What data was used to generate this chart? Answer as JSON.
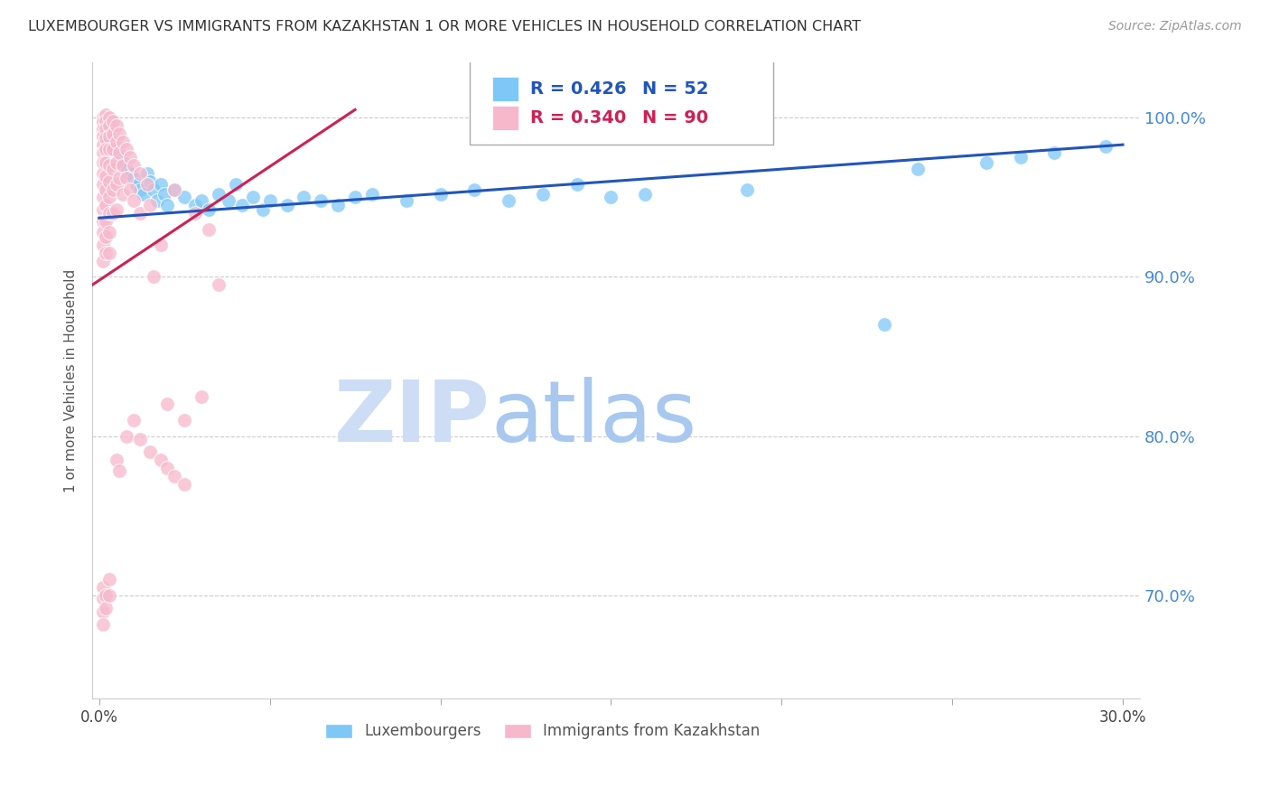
{
  "title": "LUXEMBOURGER VS IMMIGRANTS FROM KAZAKHSTAN 1 OR MORE VEHICLES IN HOUSEHOLD CORRELATION CHART",
  "source": "Source: ZipAtlas.com",
  "ylabel": "1 or more Vehicles in Household",
  "ytick_labels": [
    "70.0%",
    "80.0%",
    "90.0%",
    "100.0%"
  ],
  "ytick_values": [
    0.7,
    0.8,
    0.9,
    1.0
  ],
  "legend_blue_r": "R = 0.426",
  "legend_blue_n": "N = 52",
  "legend_pink_r": "R = 0.340",
  "legend_pink_n": "N = 90",
  "legend_blue_label": "Luxembourgers",
  "legend_pink_label": "Immigrants from Kazakhstan",
  "blue_color": "#7ec8f7",
  "pink_color": "#f7b8cc",
  "trendline_blue_color": "#2255bb",
  "trendline_pink_color": "#cc2255",
  "watermark_zip_color": "#ccddf5",
  "watermark_atlas_color": "#a8c8f0",
  "xlim_min": -0.002,
  "xlim_max": 0.305,
  "ylim_min": 0.635,
  "ylim_max": 1.035,
  "blue_trendline": [
    [
      0.0,
      0.937
    ],
    [
      0.3,
      0.983
    ]
  ],
  "pink_trendline": [
    [
      -0.002,
      0.895
    ],
    [
      0.075,
      1.005
    ]
  ],
  "blue_dots": [
    [
      0.002,
      0.99
    ],
    [
      0.003,
      0.985
    ],
    [
      0.004,
      0.982
    ],
    [
      0.005,
      0.978
    ],
    [
      0.006,
      0.975
    ],
    [
      0.007,
      0.972
    ],
    [
      0.008,
      0.968
    ],
    [
      0.009,
      0.965
    ],
    [
      0.01,
      0.962
    ],
    [
      0.011,
      0.958
    ],
    [
      0.012,
      0.955
    ],
    [
      0.013,
      0.952
    ],
    [
      0.014,
      0.965
    ],
    [
      0.015,
      0.96
    ],
    [
      0.016,
      0.955
    ],
    [
      0.017,
      0.948
    ],
    [
      0.018,
      0.958
    ],
    [
      0.019,
      0.952
    ],
    [
      0.02,
      0.945
    ],
    [
      0.022,
      0.955
    ],
    [
      0.025,
      0.95
    ],
    [
      0.028,
      0.945
    ],
    [
      0.03,
      0.948
    ],
    [
      0.032,
      0.942
    ],
    [
      0.035,
      0.952
    ],
    [
      0.038,
      0.948
    ],
    [
      0.04,
      0.958
    ],
    [
      0.042,
      0.945
    ],
    [
      0.045,
      0.95
    ],
    [
      0.048,
      0.942
    ],
    [
      0.05,
      0.948
    ],
    [
      0.055,
      0.945
    ],
    [
      0.06,
      0.95
    ],
    [
      0.065,
      0.948
    ],
    [
      0.07,
      0.945
    ],
    [
      0.075,
      0.95
    ],
    [
      0.08,
      0.952
    ],
    [
      0.09,
      0.948
    ],
    [
      0.1,
      0.952
    ],
    [
      0.11,
      0.955
    ],
    [
      0.12,
      0.948
    ],
    [
      0.13,
      0.952
    ],
    [
      0.14,
      0.958
    ],
    [
      0.15,
      0.95
    ],
    [
      0.16,
      0.952
    ],
    [
      0.19,
      0.955
    ],
    [
      0.23,
      0.87
    ],
    [
      0.24,
      0.968
    ],
    [
      0.26,
      0.972
    ],
    [
      0.27,
      0.975
    ],
    [
      0.28,
      0.978
    ],
    [
      0.295,
      0.982
    ]
  ],
  "pink_dots": [
    [
      0.001,
      1.0
    ],
    [
      0.001,
      0.997
    ],
    [
      0.001,
      0.993
    ],
    [
      0.001,
      0.988
    ],
    [
      0.001,
      0.983
    ],
    [
      0.001,
      0.978
    ],
    [
      0.001,
      0.972
    ],
    [
      0.001,
      0.965
    ],
    [
      0.001,
      0.958
    ],
    [
      0.001,
      0.95
    ],
    [
      0.001,
      0.942
    ],
    [
      0.001,
      0.935
    ],
    [
      0.001,
      0.928
    ],
    [
      0.001,
      0.92
    ],
    [
      0.001,
      0.91
    ],
    [
      0.002,
      1.002
    ],
    [
      0.002,
      0.998
    ],
    [
      0.002,
      0.993
    ],
    [
      0.002,
      0.987
    ],
    [
      0.002,
      0.98
    ],
    [
      0.002,
      0.972
    ],
    [
      0.002,
      0.963
    ],
    [
      0.002,
      0.955
    ],
    [
      0.002,
      0.945
    ],
    [
      0.002,
      0.935
    ],
    [
      0.002,
      0.925
    ],
    [
      0.002,
      0.915
    ],
    [
      0.003,
      1.0
    ],
    [
      0.003,
      0.995
    ],
    [
      0.003,
      0.988
    ],
    [
      0.003,
      0.98
    ],
    [
      0.003,
      0.97
    ],
    [
      0.003,
      0.96
    ],
    [
      0.003,
      0.95
    ],
    [
      0.003,
      0.94
    ],
    [
      0.003,
      0.928
    ],
    [
      0.003,
      0.915
    ],
    [
      0.004,
      0.998
    ],
    [
      0.004,
      0.99
    ],
    [
      0.004,
      0.98
    ],
    [
      0.004,
      0.968
    ],
    [
      0.004,
      0.955
    ],
    [
      0.004,
      0.94
    ],
    [
      0.005,
      0.995
    ],
    [
      0.005,
      0.985
    ],
    [
      0.005,
      0.972
    ],
    [
      0.005,
      0.958
    ],
    [
      0.005,
      0.942
    ],
    [
      0.006,
      0.99
    ],
    [
      0.006,
      0.978
    ],
    [
      0.006,
      0.962
    ],
    [
      0.007,
      0.985
    ],
    [
      0.007,
      0.97
    ],
    [
      0.007,
      0.952
    ],
    [
      0.008,
      0.98
    ],
    [
      0.008,
      0.962
    ],
    [
      0.009,
      0.975
    ],
    [
      0.009,
      0.955
    ],
    [
      0.01,
      0.97
    ],
    [
      0.01,
      0.948
    ],
    [
      0.012,
      0.965
    ],
    [
      0.012,
      0.94
    ],
    [
      0.014,
      0.958
    ],
    [
      0.015,
      0.945
    ],
    [
      0.016,
      0.9
    ],
    [
      0.018,
      0.92
    ],
    [
      0.02,
      0.82
    ],
    [
      0.022,
      0.955
    ],
    [
      0.025,
      0.81
    ],
    [
      0.028,
      0.94
    ],
    [
      0.03,
      0.825
    ],
    [
      0.032,
      0.93
    ],
    [
      0.035,
      0.895
    ],
    [
      0.001,
      0.705
    ],
    [
      0.001,
      0.698
    ],
    [
      0.001,
      0.69
    ],
    [
      0.001,
      0.682
    ],
    [
      0.002,
      0.7
    ],
    [
      0.002,
      0.692
    ],
    [
      0.003,
      0.71
    ],
    [
      0.003,
      0.7
    ],
    [
      0.005,
      0.785
    ],
    [
      0.006,
      0.778
    ],
    [
      0.008,
      0.8
    ],
    [
      0.01,
      0.81
    ],
    [
      0.012,
      0.798
    ],
    [
      0.015,
      0.79
    ],
    [
      0.018,
      0.785
    ],
    [
      0.02,
      0.78
    ],
    [
      0.022,
      0.775
    ],
    [
      0.025,
      0.77
    ]
  ]
}
